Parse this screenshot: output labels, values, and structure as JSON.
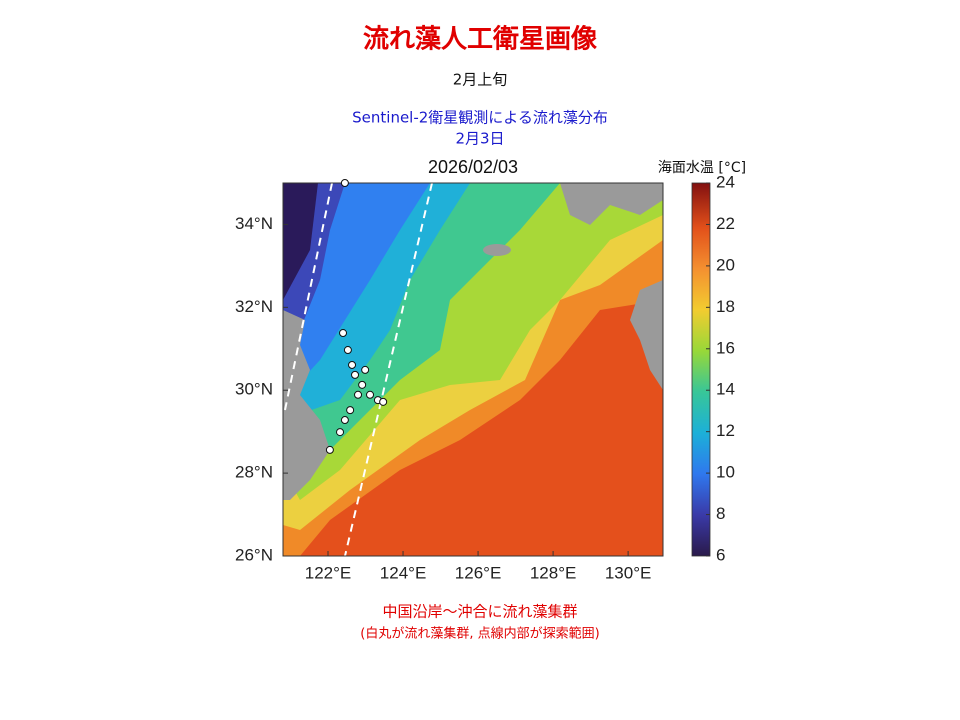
{
  "title": "流れ藻人工衛星画像",
  "period": "2月上旬",
  "source": "Sentinel-2衛星観測による流れ藻分布",
  "obs_date": "2月3日",
  "chart_data": {
    "type": "map",
    "title": "2026/02/03",
    "xlim": [
      120.8,
      130.93
    ],
    "ylim": [
      26,
      35
    ],
    "xticks": [
      {
        "value": 122,
        "label": "122°E"
      },
      {
        "value": 124,
        "label": "124°E"
      },
      {
        "value": 126,
        "label": "126°E"
      },
      {
        "value": 128,
        "label": "128°E"
      },
      {
        "value": 130,
        "label": "130°E"
      }
    ],
    "yticks": [
      {
        "value": 26,
        "label": "26°N"
      },
      {
        "value": 28,
        "label": "28°N"
      },
      {
        "value": 30,
        "label": "30°N"
      },
      {
        "value": 32,
        "label": "32°N"
      },
      {
        "value": 34,
        "label": "34°N"
      }
    ],
    "colorbar": {
      "label": "海面水温 [°C]",
      "lim": [
        6,
        24
      ],
      "ticks": [
        6,
        8,
        10,
        12,
        14,
        16,
        18,
        20,
        22,
        24
      ]
    },
    "points": {
      "x": [
        122.45,
        122.4,
        122.53,
        122.64,
        122.72,
        122.99,
        122.91,
        122.8,
        123.12,
        123.33,
        123.47,
        122.59,
        122.45,
        122.32,
        122.05
      ],
      "y": [
        35.0,
        31.38,
        30.97,
        30.61,
        30.37,
        30.49,
        30.13,
        29.89,
        29.89,
        29.76,
        29.72,
        29.52,
        29.28,
        28.99,
        28.56
      ]
    }
  },
  "caption": "中国沿岸～沖合に流れ藻集群",
  "note": "(白丸が流れ藻集群, 点線内部が探索範囲)"
}
